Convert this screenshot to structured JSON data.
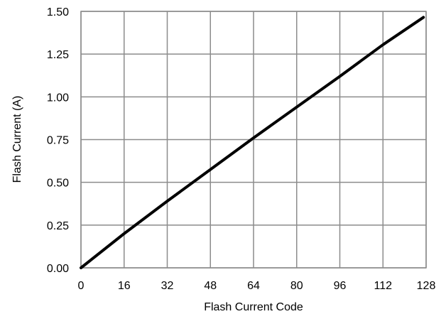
{
  "chart_data": {
    "type": "line",
    "xlabel": "Flash Current Code",
    "ylabel": "Flash Current (A)",
    "xlim": [
      0,
      128
    ],
    "ylim": [
      0,
      1.5
    ],
    "x_ticks": [
      "0",
      "16",
      "32",
      "48",
      "64",
      "80",
      "96",
      "112",
      "128"
    ],
    "y_ticks": [
      "0.00",
      "0.25",
      "0.50",
      "0.75",
      "1.00",
      "1.25",
      "1.50"
    ],
    "grid": true,
    "series": [
      {
        "color": "#000000",
        "x": [
          0,
          16,
          32,
          48,
          64,
          80,
          96,
          112,
          127
        ],
        "y": [
          0.0,
          0.2,
          0.39,
          0.575,
          0.76,
          0.94,
          1.12,
          1.305,
          1.465
        ]
      }
    ]
  }
}
